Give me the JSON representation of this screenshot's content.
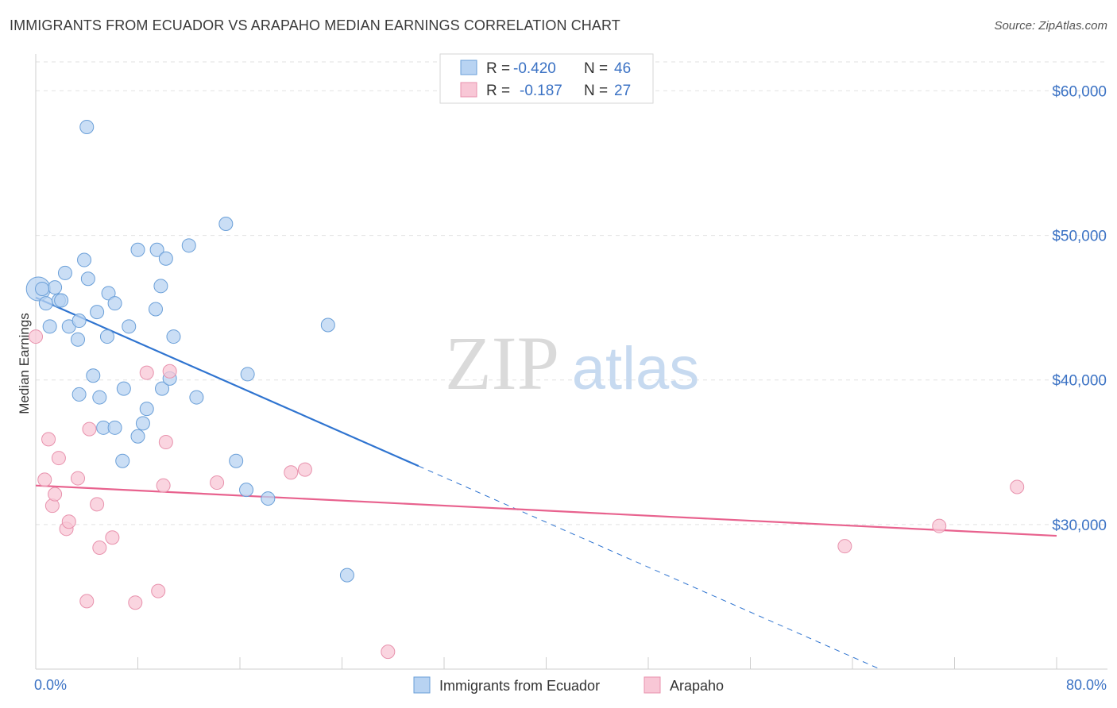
{
  "title": "IMMIGRANTS FROM ECUADOR VS ARAPAHO MEDIAN EARNINGS CORRELATION CHART",
  "source": "Source: ZipAtlas.com",
  "watermark": {
    "zip": "ZIP",
    "atlas": "atlas"
  },
  "legend_top": {
    "rows": [
      {
        "r_label": "R =",
        "r_value": "-0.420",
        "n_label": "N =",
        "n_value": "46"
      },
      {
        "r_label": "R =",
        "r_value": "-0.187",
        "n_label": "N =",
        "n_value": "27"
      }
    ]
  },
  "legend_bottom": {
    "items": [
      {
        "label": "Immigrants from Ecuador"
      },
      {
        "label": "Arapaho"
      }
    ]
  },
  "colors": {
    "series1_fill": "#b8d3f2",
    "series1_stroke": "#6a9fd8",
    "series1_line": "#2f74d0",
    "series2_fill": "#f8c7d6",
    "series2_stroke": "#e892ad",
    "series2_line": "#e8628e",
    "axis_label": "#3b72c4",
    "grid": "#e2e2e2",
    "watermark": "#dadada",
    "watermark_atlas": "#c7daf0"
  },
  "chart_data": {
    "type": "scatter",
    "title": "IMMIGRANTS FROM ECUADOR VS ARAPAHO MEDIAN EARNINGS CORRELATION CHART",
    "xlabel": "",
    "ylabel": "Median Earnings",
    "xlim": [
      0,
      80
    ],
    "ylim": [
      20000,
      62000
    ],
    "x_tick_labels": [
      "0.0%",
      "80.0%"
    ],
    "y_ticks": [
      30000,
      40000,
      50000,
      60000
    ],
    "y_tick_labels": [
      "$30,000",
      "$40,000",
      "$50,000",
      "$60,000"
    ],
    "grid": true,
    "legend_position": "top-center",
    "series": [
      {
        "name": "Immigrants from Ecuador",
        "points": [
          [
            0.2,
            46300,
            "big"
          ],
          [
            0.8,
            45300
          ],
          [
            1.5,
            46400
          ],
          [
            1.8,
            45500
          ],
          [
            2.0,
            45500
          ],
          [
            4.0,
            57500
          ],
          [
            2.3,
            47400
          ],
          [
            3.8,
            48300
          ],
          [
            4.1,
            47000
          ],
          [
            5.7,
            46000
          ],
          [
            6.2,
            45300
          ],
          [
            1.1,
            43700
          ],
          [
            2.6,
            43700
          ],
          [
            3.4,
            44100
          ],
          [
            3.3,
            42800
          ],
          [
            4.8,
            44700
          ],
          [
            5.6,
            43000
          ],
          [
            7.3,
            43700
          ],
          [
            9.4,
            44900
          ],
          [
            10.8,
            43000
          ],
          [
            8.0,
            49000
          ],
          [
            9.5,
            49000
          ],
          [
            10.2,
            48400
          ],
          [
            12.0,
            49300
          ],
          [
            14.9,
            50800
          ],
          [
            9.8,
            46500
          ],
          [
            4.5,
            40300
          ],
          [
            6.9,
            39400
          ],
          [
            9.9,
            39400
          ],
          [
            10.5,
            40100
          ],
          [
            3.4,
            39000
          ],
          [
            5.0,
            38800
          ],
          [
            8.7,
            38000
          ],
          [
            12.6,
            38800
          ],
          [
            16.6,
            40400
          ],
          [
            5.3,
            36700
          ],
          [
            6.2,
            36700
          ],
          [
            8.0,
            36100
          ],
          [
            8.4,
            37000
          ],
          [
            6.8,
            34400
          ],
          [
            15.7,
            34400
          ],
          [
            16.5,
            32400
          ],
          [
            18.2,
            31800
          ],
          [
            22.9,
            43800
          ],
          [
            24.4,
            26500
          ],
          [
            0.5,
            46300
          ]
        ]
      },
      {
        "name": "Arapaho",
        "points": [
          [
            0.0,
            43000
          ],
          [
            0.7,
            33100
          ],
          [
            1.0,
            35900
          ],
          [
            1.3,
            31300
          ],
          [
            1.5,
            32100
          ],
          [
            1.8,
            34600
          ],
          [
            2.4,
            29700
          ],
          [
            2.6,
            30200
          ],
          [
            3.3,
            33200
          ],
          [
            4.0,
            24700
          ],
          [
            4.2,
            36600
          ],
          [
            4.8,
            31400
          ],
          [
            5.0,
            28400
          ],
          [
            6.0,
            29100
          ],
          [
            7.8,
            24600
          ],
          [
            8.7,
            40500
          ],
          [
            9.6,
            25400
          ],
          [
            10.0,
            32700
          ],
          [
            10.2,
            35700
          ],
          [
            10.5,
            40600
          ],
          [
            14.2,
            32900
          ],
          [
            20.0,
            33600
          ],
          [
            21.1,
            33800
          ],
          [
            27.6,
            21200
          ],
          [
            63.4,
            28500
          ],
          [
            70.8,
            29900
          ],
          [
            76.9,
            32600
          ]
        ]
      }
    ],
    "trend_lines": [
      {
        "series": "Immigrants from Ecuador",
        "x_start": 0.0,
        "y_start": 45700,
        "x_solid_end": 30.0,
        "x_dashed_end": 66.0,
        "slope": -388.5
      },
      {
        "series": "Arapaho",
        "x_start": 0.0,
        "y_start": 32700,
        "x_end": 80.0,
        "slope": -43.5
      }
    ]
  }
}
